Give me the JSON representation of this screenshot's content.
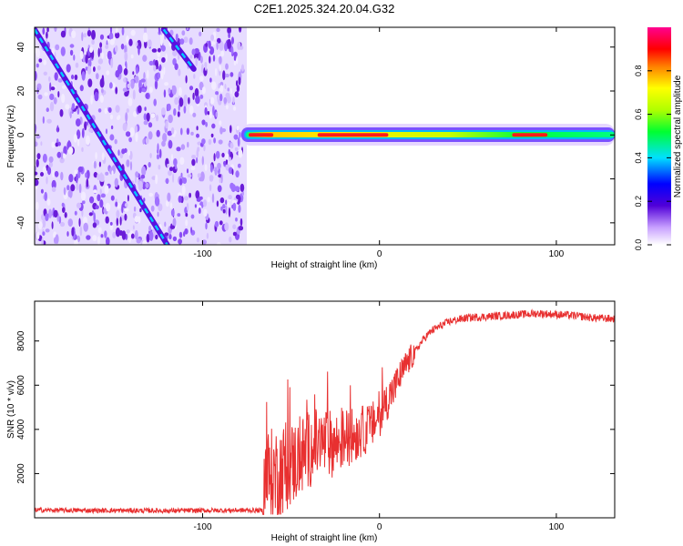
{
  "title": "C2E1.2025.324.20.04.G32",
  "chart_data": [
    {
      "type": "heatmap",
      "xlabel": "Height of straight line (km)",
      "ylabel": "Frequency (Hz)",
      "xlim": [
        -195,
        133
      ],
      "ylim": [
        -50,
        49
      ],
      "xticks": [
        -100,
        0,
        100
      ],
      "xtick_labels": [
        "-100",
        "0",
        "100"
      ],
      "yticks": [
        -40,
        -20,
        0,
        20,
        40
      ],
      "ytick_labels": [
        "-40",
        "-20",
        "0",
        "20",
        "40"
      ],
      "noise_region_km": [
        -195,
        -77
      ],
      "diagonal_tracks": [
        {
          "start": [
            -195,
            48
          ],
          "end": [
            -120,
            -50
          ]
        },
        {
          "start": [
            -122,
            48
          ],
          "end": [
            -105,
            30
          ]
        }
      ],
      "signal_band": {
        "frequency_hz": 0,
        "start_km": -77,
        "end_km": 133,
        "peak_segments_km": [
          [
            -74,
            -60
          ],
          [
            -35,
            5
          ],
          [
            75,
            95
          ]
        ]
      },
      "colorbar": {
        "label": "Normalized spectral amplitude",
        "range": [
          0,
          1
        ],
        "ticks": [
          0.0,
          0.2,
          0.4,
          0.6,
          0.8
        ],
        "tick_labels": [
          "0.0",
          "0.2",
          "0.4",
          "0.6",
          "0.8"
        ]
      }
    },
    {
      "type": "line",
      "xlabel": "Height of straight line (km)",
      "ylabel": "SNR (10 * v/v)",
      "xlim": [
        -195,
        133
      ],
      "ylim": [
        0,
        9800
      ],
      "xticks": [
        -100,
        0,
        100
      ],
      "xtick_labels": [
        "-100",
        "0",
        "100"
      ],
      "yticks": [
        2000,
        4000,
        6000,
        8000
      ],
      "ytick_labels": [
        "2000",
        "4000",
        "6000",
        "8000"
      ],
      "series": [
        {
          "name": "SNR",
          "color": "#e83030",
          "x": [
            -195,
            -180,
            -160,
            -140,
            -120,
            -100,
            -80,
            -66,
            -65,
            -60,
            -55,
            -50,
            -45,
            -40,
            -35,
            -30,
            -25,
            -20,
            -15,
            -10,
            -5,
            0,
            5,
            10,
            15,
            20,
            25,
            30,
            40,
            50,
            60,
            70,
            80,
            90,
            100,
            110,
            120,
            133
          ],
          "y": [
            350,
            340,
            330,
            330,
            320,
            330,
            340,
            330,
            1800,
            1900,
            2200,
            2400,
            2700,
            3100,
            3300,
            3400,
            3300,
            3600,
            3700,
            3900,
            4100,
            4600,
            5400,
            6100,
            6900,
            7500,
            8100,
            8500,
            8900,
            9050,
            9100,
            9150,
            9200,
            9250,
            9200,
            9150,
            9050,
            9000
          ]
        }
      ]
    }
  ]
}
